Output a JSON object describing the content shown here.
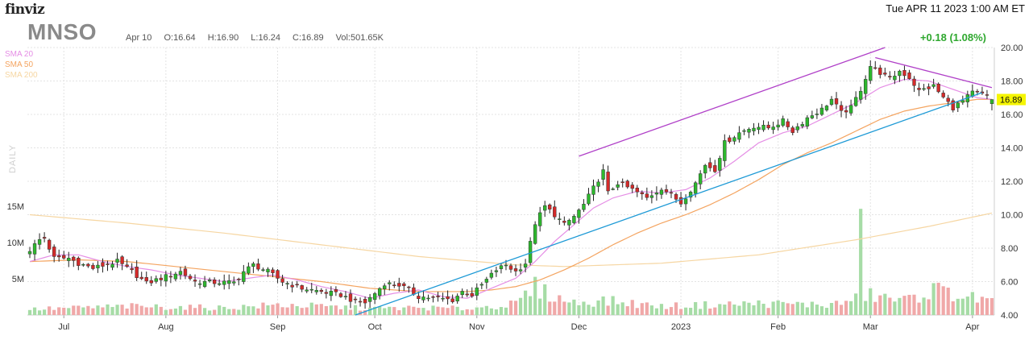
{
  "header": {
    "logo": "finviz",
    "datetime": "Tue APR 11 2023 1:00 AM ET",
    "ticker": "MNSO",
    "bar_date": "Apr 10",
    "open": "O:16.64",
    "high": "H:16.90",
    "low": "L:16.24",
    "close": "C:16.89",
    "volume": "Vol:501.65K",
    "change": "+0.18 (1.08%)",
    "last_price": "16.89",
    "timeframe": "DAILY"
  },
  "legend": [
    {
      "label": "SMA 20",
      "color": "#e58ee5"
    },
    {
      "label": "SMA 50",
      "color": "#f4a460"
    },
    {
      "label": "SMA 200",
      "color": "#f6d6a2"
    }
  ],
  "colors": {
    "up": "#2db82d",
    "down": "#d42a2a",
    "wick": "#222222",
    "trend_upper": "#b040c8",
    "trend_lower": "#1e9ad6",
    "price_tag": "#f5f500",
    "vol_up": "#a6dca6",
    "vol_down": "#f0a8a8",
    "grid": "#e3e3e3"
  },
  "chart_data": {
    "type": "candlestick",
    "title": "MNSO",
    "xlabel": "",
    "ylabel": "",
    "ylim": [
      4,
      20
    ],
    "y_ticks": [
      "20.00",
      "18.00",
      "16.00",
      "14.00",
      "12.00",
      "10.00",
      "8.00",
      "6.00",
      "4.00"
    ],
    "y_tick_values": [
      20,
      18,
      16,
      14,
      12,
      10,
      8,
      6,
      4
    ],
    "x_labels": [
      "Jul",
      "Aug",
      "Sep",
      "Oct",
      "Nov",
      "Dec",
      "2023",
      "Feb",
      "Mar",
      "Apr"
    ],
    "x_label_index": [
      7,
      28,
      51,
      71,
      92,
      113,
      134,
      154,
      173,
      194
    ],
    "volume_labels": [
      "15M",
      "10M",
      "5M"
    ],
    "volume_label_values": [
      15,
      10,
      5
    ],
    "close_anchors": [
      [
        0,
        7.9
      ],
      [
        2,
        8.5
      ],
      [
        3,
        8.6
      ],
      [
        5,
        7.4
      ],
      [
        8,
        7.4
      ],
      [
        10,
        7.1
      ],
      [
        13,
        6.8
      ],
      [
        18,
        7.2
      ],
      [
        21,
        6.6
      ],
      [
        24,
        5.9
      ],
      [
        28,
        6.3
      ],
      [
        31,
        6.6
      ],
      [
        34,
        6.0
      ],
      [
        38,
        5.95
      ],
      [
        42,
        5.95
      ],
      [
        44,
        6.6
      ],
      [
        46,
        7.0
      ],
      [
        49,
        6.6
      ],
      [
        52,
        6.0
      ],
      [
        56,
        5.6
      ],
      [
        60,
        5.4
      ],
      [
        64,
        5.2
      ],
      [
        67,
        4.8
      ],
      [
        69,
        4.75
      ],
      [
        71,
        5.3
      ],
      [
        73,
        5.9
      ],
      [
        76,
        5.8
      ],
      [
        78,
        5.5
      ],
      [
        80,
        5.1
      ],
      [
        84,
        5.0
      ],
      [
        87,
        4.9
      ],
      [
        89,
        5.4
      ],
      [
        91,
        5.2
      ],
      [
        93,
        5.8
      ],
      [
        96,
        6.7
      ],
      [
        98,
        7.0
      ],
      [
        100,
        6.6
      ],
      [
        102,
        7.1
      ],
      [
        104,
        9.5
      ],
      [
        106,
        10.5
      ],
      [
        108,
        10.0
      ],
      [
        110,
        9.4
      ],
      [
        112,
        9.9
      ],
      [
        114,
        10.6
      ],
      [
        116,
        11.6
      ],
      [
        118,
        12.6
      ],
      [
        119,
        11.3
      ],
      [
        121,
        11.9
      ],
      [
        124,
        11.5
      ],
      [
        127,
        11.0
      ],
      [
        130,
        11.6
      ],
      [
        132,
        11.2
      ],
      [
        134,
        10.7
      ],
      [
        137,
        11.9
      ],
      [
        139,
        13.0
      ],
      [
        141,
        12.7
      ],
      [
        143,
        14.3
      ],
      [
        146,
        14.9
      ],
      [
        149,
        15.3
      ],
      [
        152,
        15.2
      ],
      [
        155,
        15.6
      ],
      [
        157,
        15.0
      ],
      [
        160,
        15.8
      ],
      [
        163,
        16.3
      ],
      [
        165,
        16.9
      ],
      [
        167,
        16.1
      ],
      [
        169,
        16.4
      ],
      [
        171,
        17.5
      ],
      [
        173,
        18.9
      ],
      [
        175,
        18.5
      ],
      [
        177,
        18.1
      ],
      [
        179,
        18.6
      ],
      [
        181,
        18.2
      ],
      [
        183,
        17.4
      ],
      [
        186,
        17.7
      ],
      [
        188,
        17.0
      ],
      [
        190,
        16.4
      ],
      [
        192,
        16.8
      ],
      [
        194,
        17.3
      ],
      [
        196,
        17.2
      ],
      [
        198,
        16.89
      ]
    ],
    "volume_anchors": [
      [
        0,
        0.8
      ],
      [
        10,
        1.0
      ],
      [
        20,
        1.2
      ],
      [
        40,
        1.0
      ],
      [
        52,
        1.4
      ],
      [
        70,
        0.9
      ],
      [
        80,
        1.0
      ],
      [
        90,
        0.9
      ],
      [
        100,
        1.5
      ],
      [
        104,
        3.8
      ],
      [
        108,
        2.5
      ],
      [
        112,
        1.7
      ],
      [
        118,
        2.0
      ],
      [
        130,
        1.2
      ],
      [
        150,
        1.6
      ],
      [
        165,
        1.4
      ],
      [
        170,
        2.2
      ],
      [
        171,
        12.0
      ],
      [
        172,
        2.8
      ],
      [
        180,
        2.0
      ],
      [
        186,
        3.5
      ],
      [
        198,
        1.8
      ]
    ],
    "sma_20": [
      [
        0,
        7.2
      ],
      [
        5,
        7.6
      ],
      [
        10,
        7.6
      ],
      [
        15,
        7.2
      ],
      [
        20,
        6.9
      ],
      [
        25,
        6.7
      ],
      [
        30,
        6.4
      ],
      [
        35,
        6.2
      ],
      [
        40,
        6.0
      ],
      [
        45,
        6.2
      ],
      [
        50,
        6.4
      ],
      [
        55,
        6.1
      ],
      [
        60,
        5.7
      ],
      [
        65,
        5.4
      ],
      [
        70,
        5.0
      ],
      [
        75,
        5.3
      ],
      [
        80,
        5.5
      ],
      [
        85,
        5.1
      ],
      [
        90,
        5.0
      ],
      [
        95,
        5.6
      ],
      [
        100,
        6.2
      ],
      [
        104,
        7.2
      ],
      [
        108,
        8.4
      ],
      [
        112,
        9.4
      ],
      [
        116,
        10.4
      ],
      [
        120,
        11.0
      ],
      [
        125,
        11.4
      ],
      [
        130,
        11.3
      ],
      [
        135,
        11.5
      ],
      [
        140,
        12.2
      ],
      [
        145,
        13.2
      ],
      [
        150,
        14.3
      ],
      [
        155,
        14.9
      ],
      [
        160,
        15.3
      ],
      [
        165,
        16.0
      ],
      [
        170,
        16.7
      ],
      [
        175,
        17.6
      ],
      [
        180,
        18.1
      ],
      [
        185,
        18.0
      ],
      [
        190,
        17.5
      ],
      [
        195,
        17.0
      ],
      [
        198,
        16.9
      ]
    ],
    "sma_50": [
      [
        0,
        7.2
      ],
      [
        10,
        7.3
      ],
      [
        20,
        7.2
      ],
      [
        30,
        6.9
      ],
      [
        40,
        6.6
      ],
      [
        50,
        6.3
      ],
      [
        60,
        6.0
      ],
      [
        70,
        5.6
      ],
      [
        80,
        5.4
      ],
      [
        90,
        5.4
      ],
      [
        95,
        5.5
      ],
      [
        100,
        5.7
      ],
      [
        105,
        6.1
      ],
      [
        110,
        6.7
      ],
      [
        115,
        7.4
      ],
      [
        120,
        8.2
      ],
      [
        125,
        8.9
      ],
      [
        130,
        9.5
      ],
      [
        135,
        10.0
      ],
      [
        140,
        10.6
      ],
      [
        145,
        11.3
      ],
      [
        150,
        12.1
      ],
      [
        155,
        13.0
      ],
      [
        160,
        13.7
      ],
      [
        165,
        14.3
      ],
      [
        170,
        15.0
      ],
      [
        175,
        15.7
      ],
      [
        180,
        16.2
      ],
      [
        185,
        16.5
      ],
      [
        190,
        16.7
      ],
      [
        195,
        16.9
      ],
      [
        198,
        16.9
      ]
    ],
    "sma_200": [
      [
        0,
        10.0
      ],
      [
        20,
        9.5
      ],
      [
        40,
        8.9
      ],
      [
        60,
        8.2
      ],
      [
        80,
        7.5
      ],
      [
        100,
        7.0
      ],
      [
        110,
        6.9
      ],
      [
        130,
        7.1
      ],
      [
        150,
        7.6
      ],
      [
        170,
        8.5
      ],
      [
        185,
        9.3
      ],
      [
        198,
        10.1
      ]
    ],
    "trendlines": [
      {
        "name": "upper",
        "points": [
          [
            113,
            13.5
          ],
          [
            176,
            20.0
          ]
        ]
      },
      {
        "name": "upper-right",
        "points": [
          [
            174,
            19.4
          ],
          [
            198,
            17.6
          ]
        ]
      },
      {
        "name": "lower",
        "points": [
          [
            67,
            4.0
          ],
          [
            196,
            17.3
          ]
        ]
      }
    ]
  }
}
